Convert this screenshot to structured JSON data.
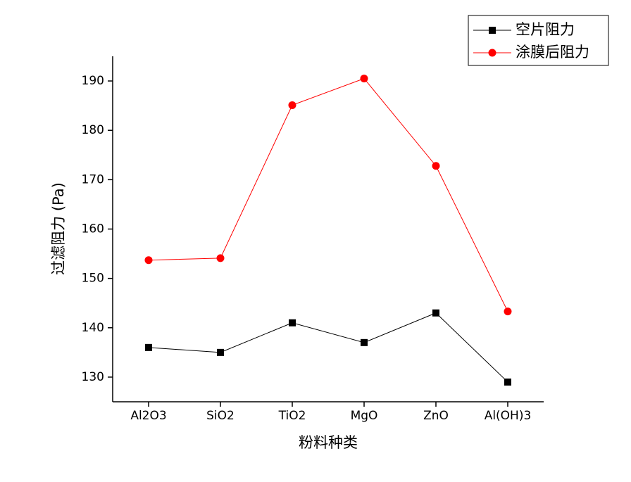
{
  "chart_data": {
    "type": "line",
    "x_label": "粉料种类",
    "y_label": "过滤阻力 (Pa)",
    "categories": [
      "Al2O3",
      "SiO2",
      "TiO2",
      "MgO",
      "ZnO",
      "Al(OH)3"
    ],
    "series": [
      {
        "name": "空片阻力",
        "color": "#000000",
        "marker": "square",
        "values": [
          136,
          135,
          141,
          137,
          143,
          129
        ]
      },
      {
        "name": "涂膜后阻力",
        "color": "#ff0000",
        "marker": "circle",
        "values": [
          153.7,
          154.1,
          185.1,
          190.5,
          172.8,
          143.3
        ]
      }
    ],
    "ylim": [
      125,
      195
    ],
    "yticks": [
      130,
      140,
      150,
      160,
      170,
      180,
      190
    ],
    "legend": "top-right",
    "grid": false
  }
}
